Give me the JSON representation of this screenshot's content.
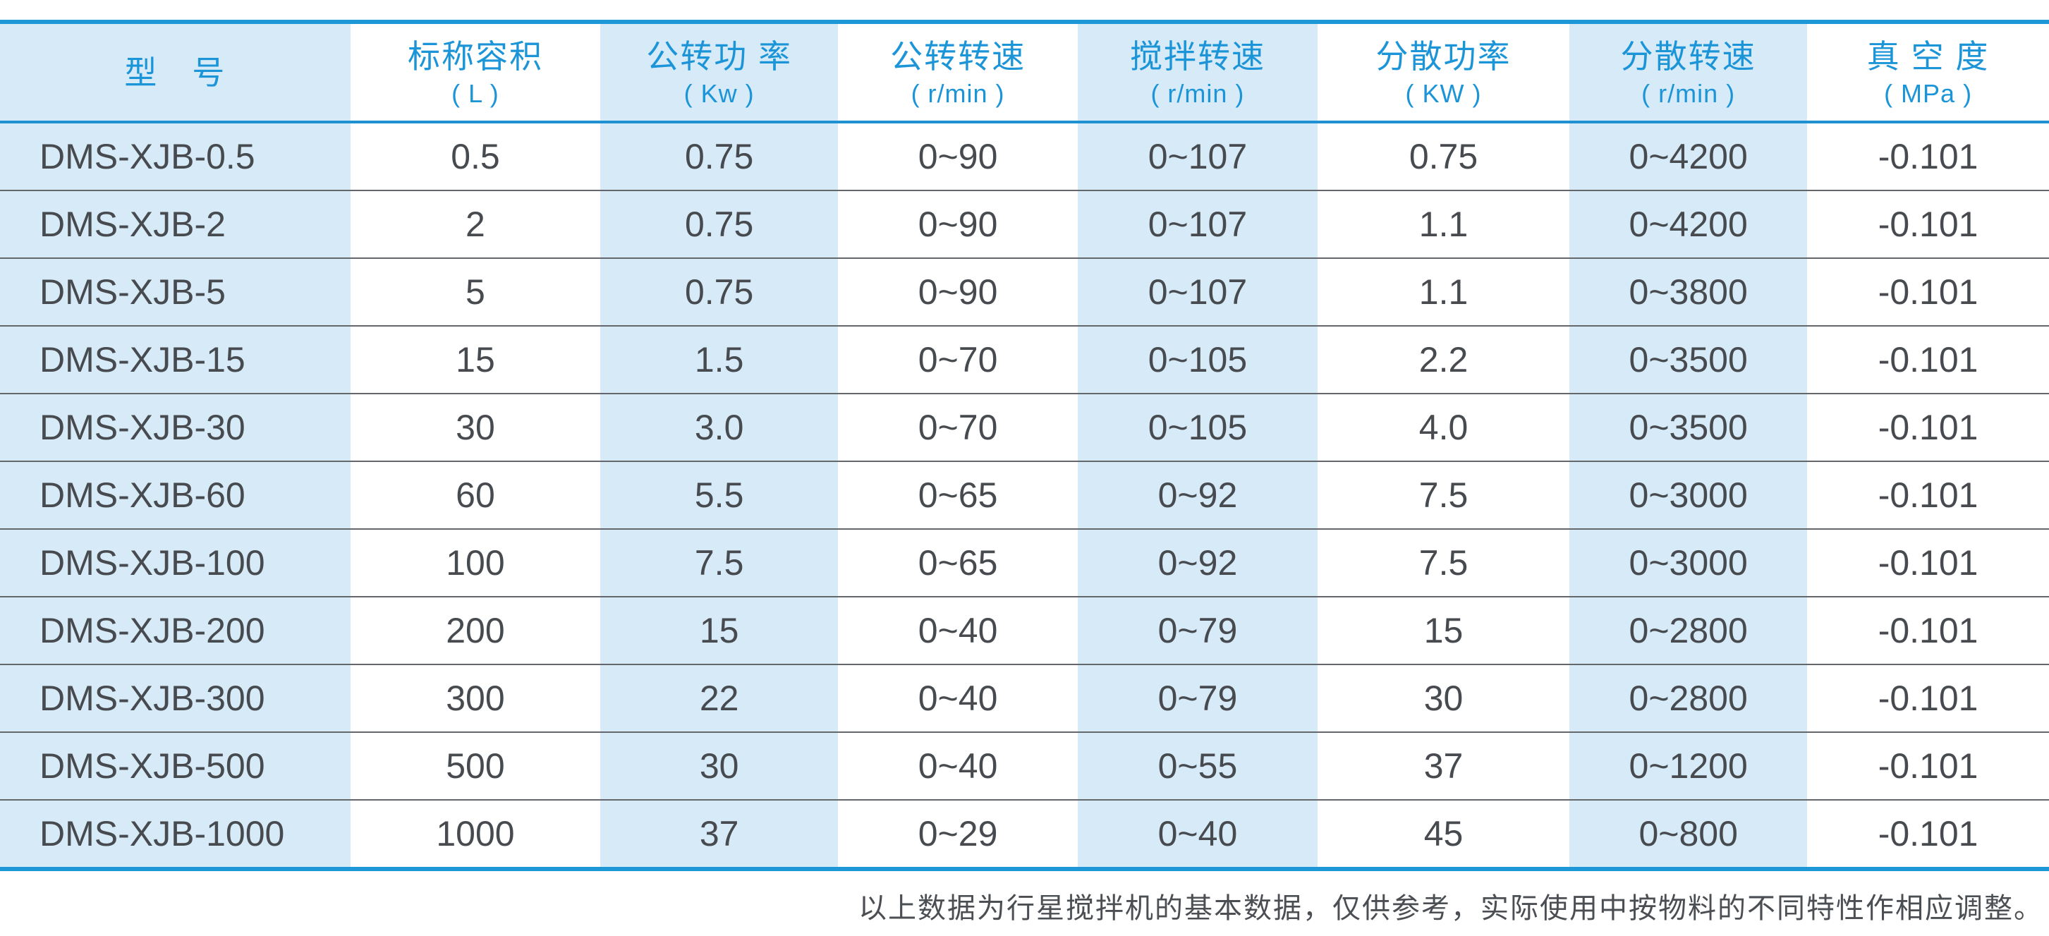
{
  "table": {
    "columns": [
      {
        "label": "型　号",
        "unit": ""
      },
      {
        "label": "标称容积",
        "unit": "( L )"
      },
      {
        "label": "公转功 率",
        "unit": "( Kw )"
      },
      {
        "label": "公转转速",
        "unit": "( r/min )"
      },
      {
        "label": "搅拌转速",
        "unit": "( r/min )"
      },
      {
        "label": "分散功率",
        "unit": "( KW )"
      },
      {
        "label": "分散转速",
        "unit": "( r/min )"
      },
      {
        "label": "真 空 度",
        "unit": "( MPa )"
      }
    ],
    "rows": [
      [
        "DMS-XJB-0.5",
        "0.5",
        "0.75",
        "0~90",
        "0~107",
        "0.75",
        "0~4200",
        "-0.101"
      ],
      [
        "DMS-XJB-2",
        "2",
        "0.75",
        "0~90",
        "0~107",
        "1.1",
        "0~4200",
        "-0.101"
      ],
      [
        "DMS-XJB-5",
        "5",
        "0.75",
        "0~90",
        "0~107",
        "1.1",
        "0~3800",
        "-0.101"
      ],
      [
        "DMS-XJB-15",
        "15",
        "1.5",
        "0~70",
        "0~105",
        "2.2",
        "0~3500",
        "-0.101"
      ],
      [
        "DMS-XJB-30",
        "30",
        "3.0",
        "0~70",
        "0~105",
        "4.0",
        "0~3500",
        "-0.101"
      ],
      [
        "DMS-XJB-60",
        "60",
        "5.5",
        "0~65",
        "0~92",
        "7.5",
        "0~3000",
        "-0.101"
      ],
      [
        "DMS-XJB-100",
        "100",
        "7.5",
        "0~65",
        "0~92",
        "7.5",
        "0~3000",
        "-0.101"
      ],
      [
        "DMS-XJB-200",
        "200",
        "15",
        "0~40",
        "0~79",
        "15",
        "0~2800",
        "-0.101"
      ],
      [
        "DMS-XJB-300",
        "300",
        "22",
        "0~40",
        "0~79",
        "30",
        "0~2800",
        "-0.101"
      ],
      [
        "DMS-XJB-500",
        "500",
        "30",
        "0~40",
        "0~55",
        "37",
        "0~1200",
        "-0.101"
      ],
      [
        "DMS-XJB-1000",
        "1000",
        "37",
        "0~29",
        "0~40",
        "45",
        "0~800",
        "-0.101"
      ]
    ]
  },
  "note": "以上数据为行星搅拌机的基本数据，仅供参考，实际使用中按物料的不同特性作相应调整。",
  "colors": {
    "accent_blue": "#1e97d6",
    "header_text_blue": "#1b95d8",
    "column_tint": "#d6eaf8",
    "body_text": "#474b4f",
    "row_line": "#63676c"
  }
}
